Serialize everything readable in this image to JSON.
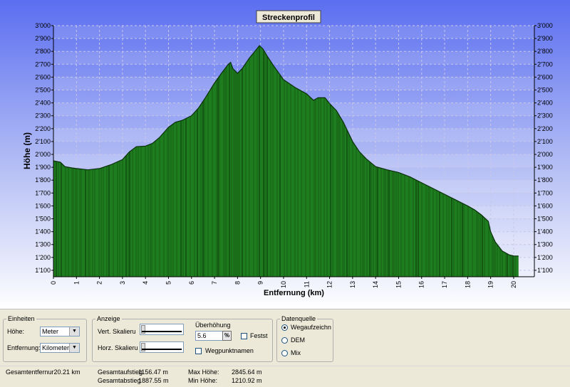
{
  "chart_data": {
    "type": "area",
    "title": "Streckenprofil",
    "xlabel": "Entfernung (km)",
    "ylabel": "Höhe (m)",
    "xlim": [
      0,
      20.9
    ],
    "ylim": [
      1050,
      3000
    ],
    "x_ticks": [
      0,
      1,
      2,
      3,
      4,
      5,
      6,
      7,
      8,
      9,
      10,
      11,
      12,
      13,
      14,
      15,
      16,
      17,
      18,
      19,
      20
    ],
    "y_ticks": [
      1100,
      1200,
      1300,
      1400,
      1500,
      1600,
      1700,
      1800,
      1900,
      2000,
      2100,
      2200,
      2300,
      2400,
      2500,
      2600,
      2700,
      2800,
      2900,
      3000
    ],
    "y_tick_labels": [
      "1'100",
      "1'200",
      "1'300",
      "1'400",
      "1'500",
      "1'600",
      "1'700",
      "1'800",
      "1'900",
      "2'000",
      "2'100",
      "2'200",
      "2'300",
      "2'400",
      "2'500",
      "2'600",
      "2'700",
      "2'800",
      "2'900",
      "3'000"
    ],
    "grid": true,
    "fill_color": "#1e7d1e",
    "x": [
      0,
      0.3,
      0.5,
      0.8,
      1.0,
      1.5,
      2.0,
      2.5,
      3.0,
      3.3,
      3.6,
      4.0,
      4.3,
      4.6,
      5.0,
      5.3,
      5.6,
      6.0,
      6.3,
      6.6,
      7.0,
      7.3,
      7.6,
      7.7,
      7.8,
      8.0,
      8.2,
      8.5,
      8.8,
      8.95,
      9.1,
      9.3,
      9.6,
      10.0,
      10.5,
      11.0,
      11.3,
      11.5,
      11.8,
      12.0,
      12.3,
      12.6,
      13.0,
      13.3,
      13.6,
      14.0,
      14.5,
      15.0,
      15.5,
      16.0,
      16.5,
      17.0,
      17.5,
      18.0,
      18.3,
      18.6,
      18.9,
      19.0,
      19.2,
      19.5,
      19.8,
      20.0,
      20.21
    ],
    "y": [
      1950,
      1940,
      1905,
      1895,
      1890,
      1880,
      1890,
      1920,
      1960,
      2020,
      2060,
      2065,
      2085,
      2130,
      2210,
      2250,
      2265,
      2300,
      2360,
      2440,
      2555,
      2630,
      2700,
      2715,
      2665,
      2630,
      2665,
      2745,
      2810,
      2845,
      2820,
      2760,
      2680,
      2580,
      2520,
      2470,
      2420,
      2440,
      2440,
      2395,
      2340,
      2250,
      2100,
      2020,
      1965,
      1905,
      1880,
      1860,
      1825,
      1780,
      1735,
      1690,
      1645,
      1600,
      1570,
      1530,
      1480,
      1400,
      1320,
      1250,
      1220,
      1212,
      1211
    ],
    "x_unit": "km",
    "y_unit": "m"
  },
  "controls": {
    "einheiten": {
      "legend": "Einheiten",
      "hoehe_label": "Höhe:",
      "hoehe_value": "Meter",
      "entfernung_label": "Entfernung:",
      "entfernung_value": "Kilometer"
    },
    "anzeige": {
      "legend": "Anzeige",
      "vert_label": "Vert. Skalieru",
      "horz_label": "Horz. Skalieru",
      "ueberhoehung_label": "Überhöhung",
      "ueberhoehung_value": "5.6",
      "pct_button": "%",
      "fest_label": "Festst",
      "wegpunkt_label": "Wegpunktnamen"
    },
    "datenquelle": {
      "legend": "Datenquelle",
      "options": [
        "Wegaufzeichnu",
        "DEM",
        "Mix"
      ]
    }
  },
  "stats": {
    "gesamtentfernung": "Gesamtentfernur20.21 km",
    "aufstieg_label": "Gesamtaufstieg",
    "aufstieg_value": "1156.47 m",
    "abstieg_label": "Gesamtabstieg",
    "abstieg_value": "1887.55 m",
    "max_label": "Max Höhe:",
    "max_value": "2845.64 m",
    "min_label": "Min Höhe:",
    "min_value": "1210.92 m"
  }
}
